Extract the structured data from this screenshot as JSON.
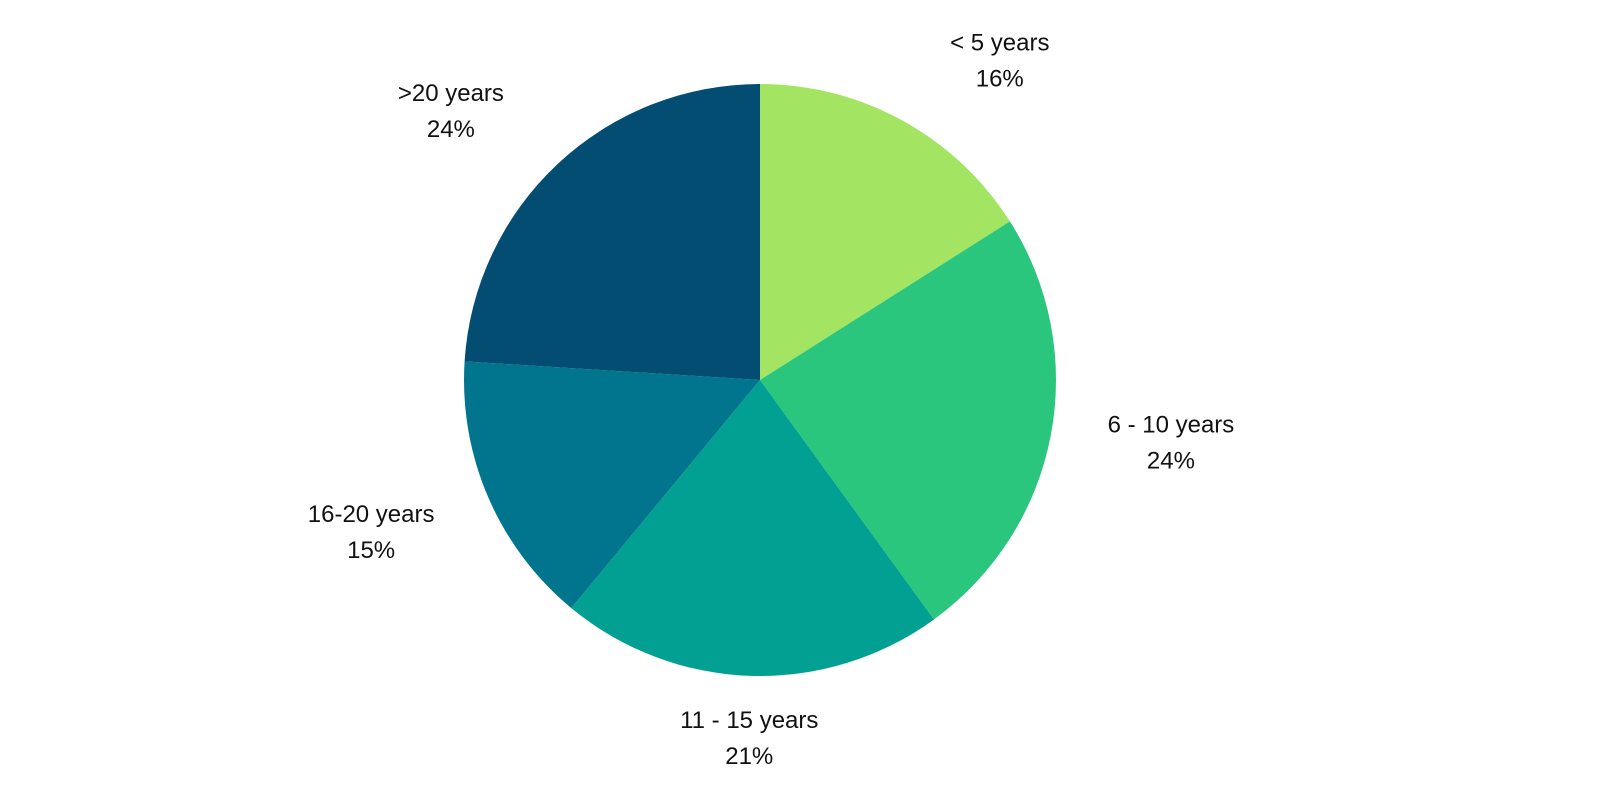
{
  "chart_data": {
    "type": "pie",
    "categories": [
      "< 5 years",
      "6 - 10 years",
      "11 - 15 years",
      "16-20 years",
      ">20 years"
    ],
    "values": [
      16,
      24,
      21,
      15,
      24
    ],
    "value_labels": [
      "16%",
      "24%",
      "21%",
      "15%",
      "24%"
    ],
    "colors": [
      "#a3e563",
      "#2bc67e",
      "#02a093",
      "#00758d",
      "#024d71"
    ]
  }
}
